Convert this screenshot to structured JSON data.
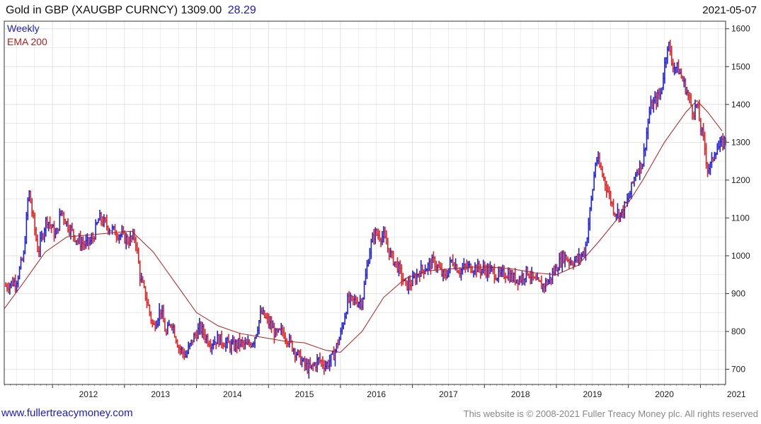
{
  "header": {
    "title": "Gold in GBP (XAUGBP CURNCY)",
    "last_price": "1309.00",
    "change": "28.29",
    "date": "2021-05-07"
  },
  "footer": {
    "site_link": "www.fullertreacymoney.com",
    "copyright": "This website is © 2008-2021 Fuller Treacy Money plc. All rights reserved"
  },
  "colors": {
    "up_bar": "#1f1fd0",
    "down_bar": "#e02020",
    "ema_line": "#b02020",
    "grid": "#e2e2e2"
  },
  "chart_data": {
    "type": "line",
    "legend": [
      "Weekly",
      "EMA 200"
    ],
    "legend_position": "top-left",
    "grid": true,
    "x_tick_labels": [
      "2012",
      "2013",
      "2014",
      "2015",
      "2016",
      "2017",
      "2018",
      "2019",
      "2020",
      "2021"
    ],
    "x_range": [
      2011.33,
      2021.35
    ],
    "y_ticks": [
      700,
      800,
      900,
      1000,
      1100,
      1200,
      1300,
      1400,
      1500,
      1600
    ],
    "ylim": [
      660,
      1620
    ],
    "y_axis_side": "right",
    "series": [
      {
        "name": "Weekly",
        "x": [
          2011.35,
          2011.5,
          2011.6,
          2011.67,
          2011.8,
          2011.92,
          2012.05,
          2012.12,
          2012.2,
          2012.35,
          2012.45,
          2012.55,
          2012.65,
          2012.75,
          2012.85,
          2012.95,
          2013.05,
          2013.15,
          2013.22,
          2013.3,
          2013.4,
          2013.5,
          2013.58,
          2013.65,
          2013.75,
          2013.85,
          2013.95,
          2014.05,
          2014.15,
          2014.2,
          2014.3,
          2014.4,
          2014.5,
          2014.6,
          2014.7,
          2014.8,
          2014.9,
          2015.05,
          2015.1,
          2015.2,
          2015.3,
          2015.4,
          2015.5,
          2015.58,
          2015.7,
          2015.8,
          2015.9,
          2016.0,
          2016.1,
          2016.2,
          2016.3,
          2016.4,
          2016.47,
          2016.6,
          2016.7,
          2016.8,
          2016.9,
          2017.0,
          2017.1,
          2017.2,
          2017.3,
          2017.45,
          2017.55,
          2017.65,
          2017.75,
          2017.85,
          2017.95,
          2018.1,
          2018.2,
          2018.3,
          2018.4,
          2018.5,
          2018.6,
          2018.7,
          2018.8,
          2018.9,
          2019.0,
          2019.1,
          2019.2,
          2019.3,
          2019.4,
          2019.5,
          2019.55,
          2019.65,
          2019.75,
          2019.8,
          2019.9,
          2020.0,
          2020.1,
          2020.2,
          2020.3,
          2020.45,
          2020.55,
          2020.6,
          2020.7,
          2020.8,
          2020.9,
          2020.95,
          2021.0,
          2021.05,
          2021.1,
          2021.15,
          2021.2,
          2021.28,
          2021.35
        ],
        "values": [
          920,
          935,
          1000,
          1175,
          1010,
          1100,
          1050,
          1120,
          1085,
          1040,
          1030,
          1040,
          1100,
          1080,
          1065,
          1055,
          1040,
          1050,
          940,
          890,
          810,
          860,
          790,
          830,
          760,
          735,
          780,
          810,
          780,
          770,
          780,
          770,
          760,
          770,
          760,
          780,
          850,
          810,
          790,
          800,
          770,
          740,
          710,
          700,
          725,
          710,
          735,
          790,
          880,
          880,
          880,
          1010,
          1060,
          1050,
          1000,
          970,
          920,
          930,
          960,
          970,
          985,
          940,
          990,
          960,
          970,
          970,
          965,
          960,
          945,
          955,
          940,
          940,
          960,
          930,
          920,
          935,
          970,
          1000,
          985,
          990,
          1015,
          1170,
          1260,
          1210,
          1150,
          1120,
          1110,
          1150,
          1220,
          1250,
          1390,
          1430,
          1570,
          1510,
          1490,
          1440,
          1380,
          1400,
          1340,
          1300,
          1230,
          1240,
          1280,
          1290,
          1309
        ]
      },
      {
        "name": "EMA 200",
        "x": [
          2011.33,
          2011.6,
          2011.9,
          2012.2,
          2012.5,
          2012.8,
          2013.1,
          2013.4,
          2013.7,
          2014.0,
          2014.3,
          2014.6,
          2014.9,
          2015.2,
          2015.5,
          2015.8,
          2016.0,
          2016.3,
          2016.6,
          2016.9,
          2017.2,
          2017.5,
          2017.8,
          2018.1,
          2018.4,
          2018.7,
          2019.0,
          2019.3,
          2019.6,
          2019.9,
          2020.2,
          2020.5,
          2020.8,
          2020.95,
          2021.1,
          2021.3
        ],
        "values": [
          860,
          930,
          1010,
          1050,
          1055,
          1060,
          1065,
          1010,
          930,
          850,
          815,
          795,
          785,
          775,
          770,
          750,
          745,
          800,
          890,
          940,
          960,
          965,
          970,
          970,
          965,
          955,
          950,
          975,
          1040,
          1110,
          1200,
          1300,
          1380,
          1410,
          1380,
          1330
        ]
      }
    ]
  }
}
